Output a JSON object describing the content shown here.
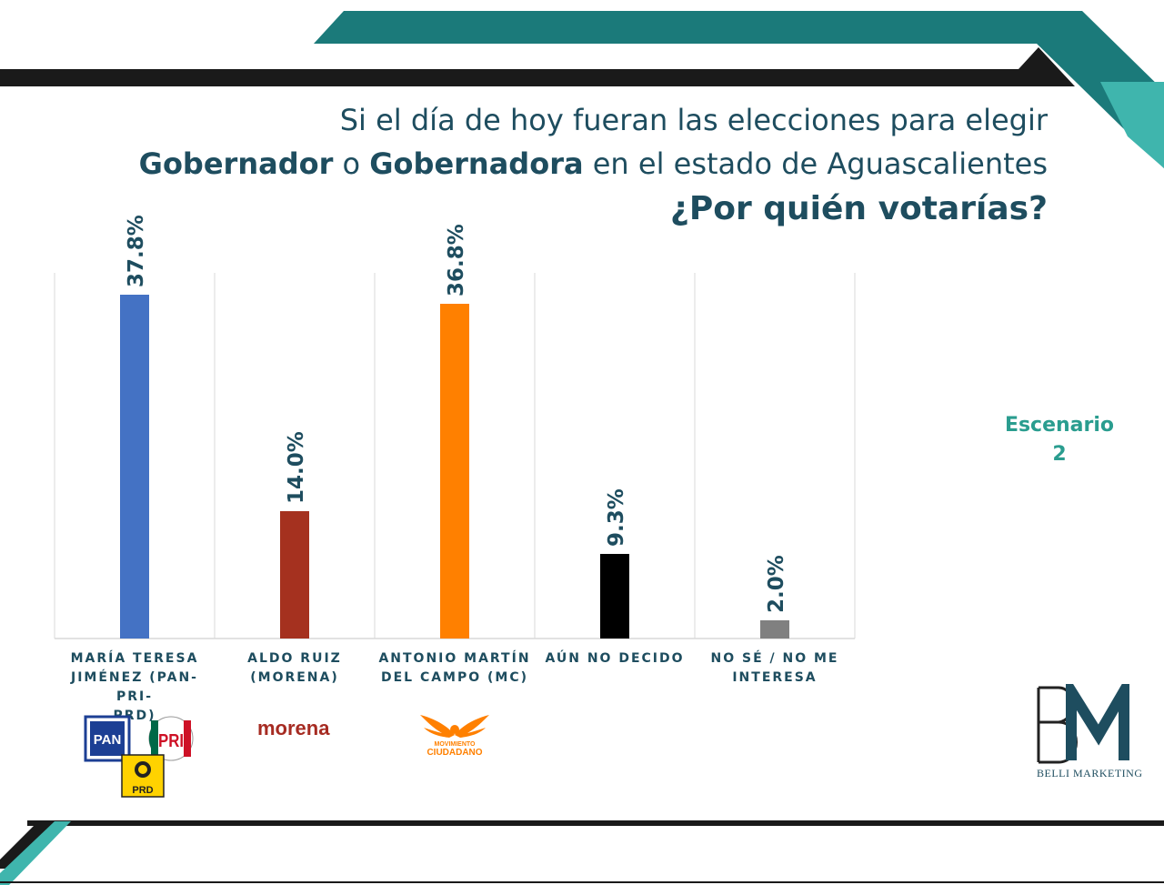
{
  "title": {
    "line1": "Si el día de hoy fueran las elecciones para elegir",
    "line2_bold1": "Gobernador",
    "line2_mid": " o ",
    "line2_bold2": "Gobernadora",
    "line2_rest": " en el estado de Aguascalientes",
    "line3": "¿Por quién votarías?"
  },
  "scenario": {
    "label": "Escenario",
    "number": "2"
  },
  "party_logos": {
    "pan": "PAN",
    "pri": "PRI",
    "prd": "PRD",
    "morena": "morena",
    "mc_line1": "MOVIMIENTO",
    "mc_line2": "CIUDADANO"
  },
  "brand": {
    "monogram": "BM",
    "name": "BELLI MARKETING"
  },
  "colors": {
    "teal": "#1b7a7a",
    "teal_light": "#3fb5ad",
    "dark": "#1a1a1a",
    "title": "#1e4d5f",
    "grid": "#d9d9d9"
  },
  "chart_data": {
    "type": "bar",
    "title": "¿Por quién votarías?",
    "xlabel": "",
    "ylabel": "",
    "ylim": [
      0,
      40
    ],
    "grid": "vertical separators",
    "categories": [
      "MARÍA TERESA JIMÉNEZ (PAN-PRI-PRD)",
      "ALDO RUIZ (MORENA)",
      "ANTONIO MARTÍN DEL CAMPO (MC)",
      "AÚN NO DECIDO",
      "NO SÉ / NO ME INTERESA"
    ],
    "category_lines": [
      [
        "MARÍA TERESA",
        "JIMÉNEZ (PAN-PRI-",
        "PRD)"
      ],
      [
        "ALDO RUIZ",
        "(MORENA)"
      ],
      [
        "ANTONIO MARTÍN",
        "DEL CAMPO (MC)"
      ],
      [
        "AÚN NO DECIDO"
      ],
      [
        "NO SÉ / NO ME",
        "INTERESA"
      ]
    ],
    "values": [
      37.8,
      14.0,
      36.8,
      9.3,
      2.0
    ],
    "labels": [
      "37.8%",
      "14.0%",
      "36.8%",
      "9.3%",
      "2.0%"
    ],
    "colors": [
      "#4472c4",
      "#a5311f",
      "#ff8000",
      "#000000",
      "#808080"
    ]
  }
}
